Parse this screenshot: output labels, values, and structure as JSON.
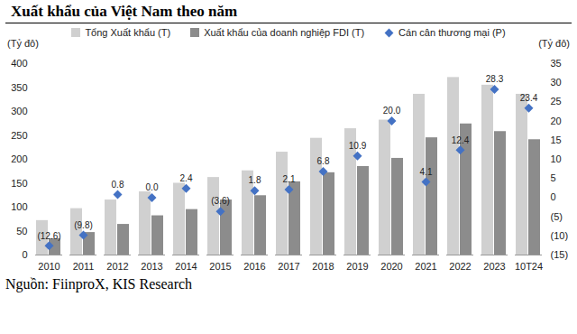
{
  "chart_data": {
    "type": "bar",
    "title": "Xuất khẩu của Việt Nam theo năm",
    "caption": "Nguồn: FiinproX, KIS Research",
    "y_label": "(Tỷ đô)",
    "y2_label": "(Tỷ đô)",
    "categories": [
      "2010",
      "2011",
      "2012",
      "2013",
      "2014",
      "2015",
      "2016",
      "2017",
      "2018",
      "2019",
      "2020",
      "2021",
      "2022",
      "2023",
      "10T24"
    ],
    "series": [
      {
        "name": "Tổng Xuất khẩu (T)",
        "type": "bar",
        "color": "#d0d0d0",
        "values": [
          72,
          97,
          115,
          132,
          150,
          162,
          176,
          215,
          244,
          264,
          282,
          336,
          371,
          355,
          336
        ]
      },
      {
        "name": "Xuất khẩu của doanh nghiệp FDI (T)",
        "type": "bar",
        "color": "#8c8c8c",
        "values": [
          34,
          47,
          64,
          82,
          95,
          115,
          124,
          153,
          172,
          185,
          202,
          245,
          274,
          258,
          241
        ]
      },
      {
        "name": "Cán cân thương mại (P)",
        "type": "scatter",
        "axis": "y2",
        "color": "#4472c4",
        "marker": "diamond",
        "data_labels": true,
        "values": [
          -12.6,
          -9.8,
          0.8,
          0.0,
          2.4,
          -3.6,
          1.8,
          2.1,
          6.8,
          10.9,
          20.0,
          4.1,
          12.4,
          28.3,
          23.4
        ],
        "value_labels": [
          "(12.6)",
          "(9.8)",
          "0.8",
          "0.0",
          "2.4",
          "(3.6)",
          "1.8",
          "2.1",
          "6.8",
          "10.9",
          "20.0",
          "4.1",
          "12.4",
          "28.3",
          "23.4"
        ]
      }
    ],
    "ylim": [
      0,
      400
    ],
    "yticks": [
      0,
      50,
      100,
      150,
      200,
      250,
      300,
      350,
      400
    ],
    "y2lim": [
      -15,
      35
    ],
    "y2ticks": [
      {
        "value": -15,
        "label": "(15)"
      },
      {
        "value": -10,
        "label": "(10)"
      },
      {
        "value": -5,
        "label": "(5)"
      },
      0,
      5,
      10,
      15,
      20,
      25,
      30,
      35
    ],
    "grid": false,
    "legend": "top"
  }
}
